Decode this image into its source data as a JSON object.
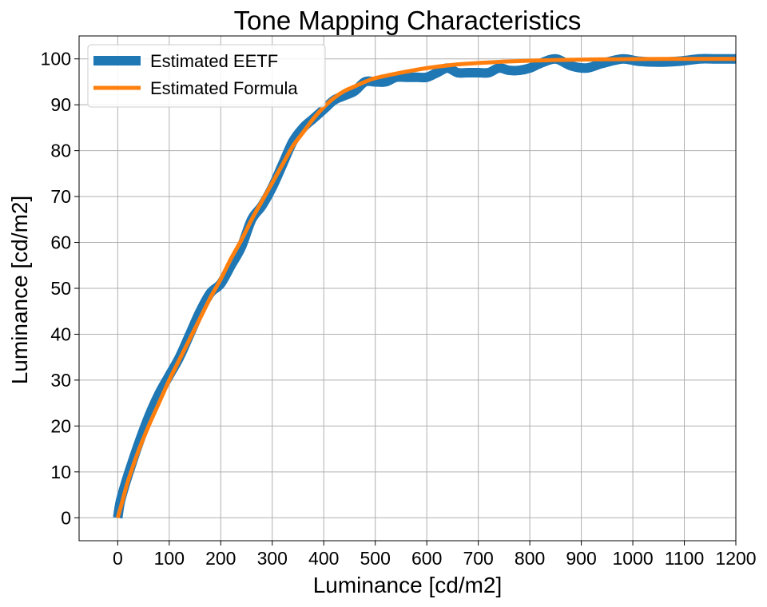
{
  "chart_data": {
    "type": "line",
    "title": "Tone Mapping Characteristics",
    "xlabel": "Luminance [cd/m2]",
    "ylabel": "Luminance [cd/m2]",
    "xlim": [
      -75,
      1200
    ],
    "ylim": [
      -5,
      105
    ],
    "xticks": [
      0,
      100,
      200,
      300,
      400,
      500,
      600,
      700,
      800,
      900,
      1000,
      1100,
      1200
    ],
    "yticks": [
      0,
      10,
      20,
      30,
      40,
      50,
      60,
      70,
      80,
      90,
      100
    ],
    "grid": true,
    "legend_position": "top-left",
    "series": [
      {
        "name": "Estimated EETF",
        "color": "#1f77b4",
        "style": "thick",
        "x": [
          0,
          5,
          15,
          25,
          40,
          60,
          80,
          100,
          120,
          140,
          160,
          180,
          200,
          220,
          240,
          260,
          280,
          300,
          320,
          340,
          360,
          380,
          400,
          420,
          440,
          460,
          480,
          500,
          520,
          540,
          560,
          580,
          600,
          620,
          640,
          660,
          680,
          700,
          720,
          740,
          760,
          780,
          800,
          820,
          850,
          880,
          910,
          940,
          980,
          1010,
          1050,
          1090,
          1130,
          1160,
          1200
        ],
        "y": [
          0,
          3.5,
          7.5,
          11,
          16,
          22,
          27,
          31,
          35,
          40,
          45,
          49,
          51,
          55,
          59,
          65,
          68,
          72,
          77,
          82,
          85,
          87,
          89,
          91,
          92,
          93,
          95,
          95,
          95,
          96,
          96,
          96,
          96,
          97,
          98,
          97,
          97,
          97,
          97,
          98,
          97.5,
          97.5,
          98,
          99,
          100,
          98.5,
          98,
          99,
          100,
          99.5,
          99.3,
          99.5,
          100,
          100,
          100
        ]
      },
      {
        "name": "Estimated Formula",
        "color": "#ff7f0e",
        "style": "normal",
        "x": [
          0,
          10,
          20,
          40,
          60,
          80,
          100,
          120,
          140,
          160,
          180,
          200,
          220,
          240,
          260,
          280,
          300,
          320,
          340,
          360,
          380,
          400,
          420,
          440,
          460,
          480,
          500,
          550,
          600,
          650,
          700,
          750,
          800,
          850,
          900,
          950,
          1000,
          1100,
          1200
        ],
        "y": [
          0,
          4,
          8,
          14.5,
          20,
          25,
          30,
          34.5,
          39,
          43.5,
          48,
          52,
          56.5,
          60.5,
          65,
          69,
          73,
          77,
          81,
          84,
          87,
          89.5,
          91.5,
          93,
          94,
          95,
          95.8,
          97,
          98,
          98.7,
          99.1,
          99.4,
          99.6,
          99.75,
          99.85,
          99.9,
          99.95,
          100,
          100
        ]
      }
    ]
  }
}
